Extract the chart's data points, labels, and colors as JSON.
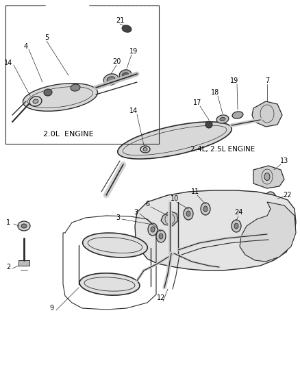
{
  "bg_color": "#ffffff",
  "line_color": "#2a2a2a",
  "text_color": "#000000",
  "fig_width": 4.39,
  "fig_height": 5.33,
  "dpi": 100,
  "inset_label": "2.0L  ENGINE",
  "main_label": "2.4L, 2.5L ENGINE"
}
